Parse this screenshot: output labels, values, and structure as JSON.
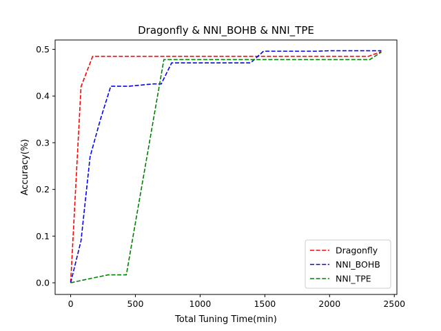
{
  "chart_data": {
    "type": "line",
    "title": "Dragonfly & NNI_BOHB & NNI_TPE",
    "xlabel": "Total Tuning Time(min)",
    "ylabel": "Accuracy(%)",
    "xlim": [
      -120,
      2520
    ],
    "ylim": [
      -0.025,
      0.52
    ],
    "xticks": [
      0,
      500,
      1000,
      1500,
      2000,
      2500
    ],
    "yticks": [
      0.0,
      0.1,
      0.2,
      0.3,
      0.4,
      0.5
    ],
    "xtick_labels": [
      "0",
      "500",
      "1000",
      "1500",
      "2000",
      "2500"
    ],
    "ytick_labels": [
      "0.0",
      "0.1",
      "0.2",
      "0.3",
      "0.4",
      "0.5"
    ],
    "grid": false,
    "legend_position": "lower-right",
    "series": [
      {
        "name": "Dragonfly",
        "color": "#ff0000",
        "x": [
          0,
          80,
          170,
          1000,
          2000,
          2300,
          2400
        ],
        "y": [
          0.0,
          0.42,
          0.485,
          0.485,
          0.485,
          0.485,
          0.495
        ]
      },
      {
        "name": "NNI_BOHB",
        "color": "#0000ff",
        "x": [
          0,
          80,
          150,
          230,
          310,
          450,
          640,
          700,
          780,
          1000,
          1390,
          1490,
          1900,
          2000,
          2400
        ],
        "y": [
          0.0,
          0.09,
          0.27,
          0.35,
          0.421,
          0.421,
          0.426,
          0.426,
          0.471,
          0.471,
          0.471,
          0.496,
          0.496,
          0.497,
          0.497
        ]
      },
      {
        "name": "NNI_TPE",
        "color": "#008000",
        "x": [
          0,
          150,
          290,
          430,
          720,
          1000,
          2000,
          2310,
          2400
        ],
        "y": [
          0.0,
          0.009,
          0.017,
          0.017,
          0.478,
          0.478,
          0.478,
          0.478,
          0.494
        ]
      }
    ]
  }
}
